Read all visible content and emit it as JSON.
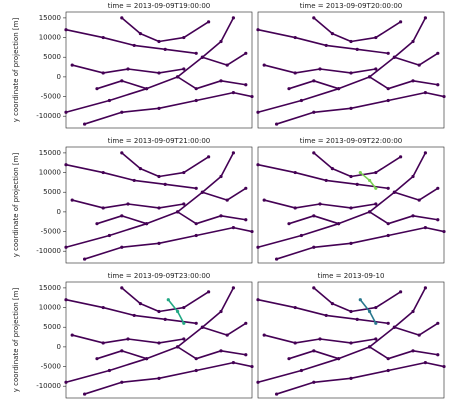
{
  "chart_data": [
    {
      "type": "line",
      "title": "time = 2013-09-09T19:00:00",
      "ylabel": "y coordinate of projection [m]",
      "xlim": [
        -15000,
        15000
      ],
      "ylim": [
        -13000,
        16500
      ],
      "yticks": [
        15000,
        10000,
        5000,
        0,
        -5000,
        -10000
      ],
      "series": [
        {
          "color": "#440154",
          "x": [
            -15000,
            -8000,
            -2000,
            3000,
            7000,
            10000,
            12000
          ],
          "y": [
            -9000,
            -6000,
            -3000,
            0,
            5000,
            9000,
            15000
          ]
        },
        {
          "color": "#440154",
          "x": [
            -15000,
            -9000,
            -4000,
            1000,
            6000
          ],
          "y": [
            12000,
            10000,
            8000,
            7000,
            6000
          ]
        },
        {
          "color": "#440154",
          "x": [
            -14000,
            -9000,
            -5000,
            0,
            4000
          ],
          "y": [
            3000,
            1000,
            2000,
            1000,
            2000
          ]
        },
        {
          "color": "#440154",
          "x": [
            -12000,
            -6000,
            0,
            6000,
            12000,
            15000
          ],
          "y": [
            -12000,
            -9000,
            -8000,
            -6000,
            -4000,
            -5000
          ]
        },
        {
          "color": "#440154",
          "x": [
            -6000,
            -3000,
            0,
            4000,
            8000
          ],
          "y": [
            15000,
            11000,
            9000,
            10000,
            14000
          ]
        },
        {
          "color": "#440154",
          "x": [
            7000,
            11000,
            14000
          ],
          "y": [
            5000,
            3000,
            6000
          ]
        },
        {
          "color": "#440154",
          "x": [
            3000,
            6000,
            10000,
            14000
          ],
          "y": [
            0,
            -3000,
            -1000,
            -2000
          ]
        },
        {
          "color": "#440154",
          "x": [
            -10000,
            -6000,
            -2000
          ],
          "y": [
            -3000,
            -1000,
            -3000
          ]
        }
      ]
    },
    {
      "type": "line",
      "title": "time = 2013-09-09T20:00:00",
      "xlim": [
        -15000,
        15000
      ],
      "ylim": [
        -13000,
        16500
      ],
      "series": [
        {
          "color": "#440154",
          "x": [
            -15000,
            -8000,
            -2000,
            3000,
            7000,
            10000,
            12000
          ],
          "y": [
            -9000,
            -6000,
            -3000,
            0,
            5000,
            9000,
            15000
          ]
        },
        {
          "color": "#440154",
          "x": [
            -15000,
            -9000,
            -4000,
            1000,
            6000
          ],
          "y": [
            12000,
            10000,
            8000,
            7000,
            6000
          ]
        },
        {
          "color": "#440154",
          "x": [
            -14000,
            -9000,
            -5000,
            0,
            4000
          ],
          "y": [
            3000,
            1000,
            2000,
            1000,
            2000
          ]
        },
        {
          "color": "#440154",
          "x": [
            -12000,
            -6000,
            0,
            6000,
            12000,
            15000
          ],
          "y": [
            -12000,
            -9000,
            -8000,
            -6000,
            -4000,
            -5000
          ]
        },
        {
          "color": "#440154",
          "x": [
            -6000,
            -3000,
            0,
            4000,
            8000
          ],
          "y": [
            15000,
            11000,
            9000,
            10000,
            14000
          ]
        },
        {
          "color": "#440154",
          "x": [
            7000,
            11000,
            14000
          ],
          "y": [
            5000,
            3000,
            6000
          ]
        },
        {
          "color": "#440154",
          "x": [
            3000,
            6000,
            10000,
            14000
          ],
          "y": [
            0,
            -3000,
            -1000,
            -2000
          ]
        },
        {
          "color": "#440154",
          "x": [
            -10000,
            -6000,
            -2000
          ],
          "y": [
            -3000,
            -1000,
            -3000
          ]
        }
      ]
    },
    {
      "type": "line",
      "title": "time = 2013-09-09T21:00:00",
      "ylabel": "y coordinate of projection [m]",
      "xlim": [
        -15000,
        15000
      ],
      "ylim": [
        -13000,
        16500
      ],
      "yticks": [
        15000,
        10000,
        5000,
        0,
        -5000,
        -10000
      ],
      "series": [
        {
          "color": "#440154",
          "x": [
            -15000,
            -8000,
            -2000,
            3000,
            7000,
            10000,
            12000
          ],
          "y": [
            -9000,
            -6000,
            -3000,
            0,
            5000,
            9000,
            15000
          ]
        },
        {
          "color": "#440154",
          "x": [
            -15000,
            -9000,
            -4000,
            1000,
            6000
          ],
          "y": [
            12000,
            10000,
            8000,
            7000,
            6000
          ]
        },
        {
          "color": "#440154",
          "x": [
            -14000,
            -9000,
            -5000,
            0,
            4000
          ],
          "y": [
            3000,
            1000,
            2000,
            1000,
            2000
          ]
        },
        {
          "color": "#440154",
          "x": [
            -12000,
            -6000,
            0,
            6000,
            12000,
            15000
          ],
          "y": [
            -12000,
            -9000,
            -8000,
            -6000,
            -4000,
            -5000
          ]
        },
        {
          "color": "#440154",
          "x": [
            -6000,
            -3000,
            0,
            4000,
            8000
          ],
          "y": [
            15000,
            11000,
            9000,
            10000,
            14000
          ]
        },
        {
          "color": "#440154",
          "x": [
            7000,
            11000,
            14000
          ],
          "y": [
            5000,
            3000,
            6000
          ]
        },
        {
          "color": "#440154",
          "x": [
            3000,
            6000,
            10000,
            14000
          ],
          "y": [
            0,
            -3000,
            -1000,
            -2000
          ]
        },
        {
          "color": "#440154",
          "x": [
            -10000,
            -6000,
            -2000
          ],
          "y": [
            -3000,
            -1000,
            -3000
          ]
        }
      ]
    },
    {
      "type": "line",
      "title": "time = 2013-09-09T22:00:00",
      "xlim": [
        -15000,
        15000
      ],
      "ylim": [
        -13000,
        16500
      ],
      "series": [
        {
          "color": "#440154",
          "x": [
            -15000,
            -8000,
            -2000,
            3000,
            7000,
            10000,
            12000
          ],
          "y": [
            -9000,
            -6000,
            -3000,
            0,
            5000,
            9000,
            15000
          ]
        },
        {
          "color": "#440154",
          "x": [
            -15000,
            -9000,
            -4000,
            1000,
            6000
          ],
          "y": [
            12000,
            10000,
            8000,
            7000,
            6000
          ]
        },
        {
          "color": "#440154",
          "x": [
            -14000,
            -9000,
            -5000,
            0,
            4000
          ],
          "y": [
            3000,
            1000,
            2000,
            1000,
            2000
          ]
        },
        {
          "color": "#440154",
          "x": [
            -12000,
            -6000,
            0,
            6000,
            12000,
            15000
          ],
          "y": [
            -12000,
            -9000,
            -8000,
            -6000,
            -4000,
            -5000
          ]
        },
        {
          "color": "#440154",
          "x": [
            -6000,
            -3000,
            0,
            4000,
            8000
          ],
          "y": [
            15000,
            11000,
            9000,
            10000,
            14000
          ]
        },
        {
          "color": "#440154",
          "x": [
            7000,
            11000,
            14000
          ],
          "y": [
            5000,
            3000,
            6000
          ]
        },
        {
          "color": "#440154",
          "x": [
            3000,
            6000,
            10000,
            14000
          ],
          "y": [
            0,
            -3000,
            -1000,
            -2000
          ]
        },
        {
          "color": "#440154",
          "x": [
            -10000,
            -6000,
            -2000
          ],
          "y": [
            -3000,
            -1000,
            -3000
          ]
        },
        {
          "color": "#7ad151",
          "x": [
            1500,
            3000,
            4000
          ],
          "y": [
            10000,
            8000,
            6000
          ]
        }
      ]
    },
    {
      "type": "line",
      "title": "time = 2013-09-09T23:00:00",
      "ylabel": "y coordinate of projection [m]",
      "xlim": [
        -15000,
        15000
      ],
      "ylim": [
        -13000,
        16500
      ],
      "yticks": [
        15000,
        10000,
        5000,
        0,
        -5000,
        -10000
      ],
      "series": [
        {
          "color": "#440154",
          "x": [
            -15000,
            -8000,
            -2000,
            3000,
            7000,
            10000,
            12000
          ],
          "y": [
            -9000,
            -6000,
            -3000,
            0,
            5000,
            9000,
            15000
          ]
        },
        {
          "color": "#440154",
          "x": [
            -15000,
            -9000,
            -4000,
            1000,
            6000
          ],
          "y": [
            12000,
            10000,
            8000,
            7000,
            6000
          ]
        },
        {
          "color": "#440154",
          "x": [
            -14000,
            -9000,
            -5000,
            0,
            4000
          ],
          "y": [
            3000,
            1000,
            2000,
            1000,
            2000
          ]
        },
        {
          "color": "#440154",
          "x": [
            -12000,
            -6000,
            0,
            6000,
            12000,
            15000
          ],
          "y": [
            -12000,
            -9000,
            -8000,
            -6000,
            -4000,
            -5000
          ]
        },
        {
          "color": "#440154",
          "x": [
            -6000,
            -3000,
            0,
            4000,
            8000
          ],
          "y": [
            15000,
            11000,
            9000,
            10000,
            14000
          ]
        },
        {
          "color": "#440154",
          "x": [
            7000,
            11000,
            14000
          ],
          "y": [
            5000,
            3000,
            6000
          ]
        },
        {
          "color": "#440154",
          "x": [
            3000,
            6000,
            10000,
            14000
          ],
          "y": [
            0,
            -3000,
            -1000,
            -2000
          ]
        },
        {
          "color": "#440154",
          "x": [
            -10000,
            -6000,
            -2000
          ],
          "y": [
            -3000,
            -1000,
            -3000
          ]
        },
        {
          "color": "#22a884",
          "x": [
            1500,
            3000,
            4000
          ],
          "y": [
            12000,
            9000,
            6000
          ]
        }
      ]
    },
    {
      "type": "line",
      "title": "time = 2013-09-10",
      "xlim": [
        -15000,
        15000
      ],
      "ylim": [
        -13000,
        16500
      ],
      "series": [
        {
          "color": "#440154",
          "x": [
            -15000,
            -8000,
            -2000,
            3000,
            7000,
            10000,
            12000
          ],
          "y": [
            -9000,
            -6000,
            -3000,
            0,
            5000,
            9000,
            15000
          ]
        },
        {
          "color": "#440154",
          "x": [
            -15000,
            -9000,
            -4000,
            1000,
            6000
          ],
          "y": [
            12000,
            10000,
            8000,
            7000,
            6000
          ]
        },
        {
          "color": "#440154",
          "x": [
            -14000,
            -9000,
            -5000,
            0,
            4000
          ],
          "y": [
            3000,
            1000,
            2000,
            1000,
            2000
          ]
        },
        {
          "color": "#440154",
          "x": [
            -12000,
            -6000,
            0,
            6000,
            12000,
            15000
          ],
          "y": [
            -12000,
            -9000,
            -8000,
            -6000,
            -4000,
            -5000
          ]
        },
        {
          "color": "#440154",
          "x": [
            -6000,
            -3000,
            0,
            4000,
            8000
          ],
          "y": [
            15000,
            11000,
            9000,
            10000,
            14000
          ]
        },
        {
          "color": "#440154",
          "x": [
            7000,
            11000,
            14000
          ],
          "y": [
            5000,
            3000,
            6000
          ]
        },
        {
          "color": "#440154",
          "x": [
            3000,
            6000,
            10000,
            14000
          ],
          "y": [
            0,
            -3000,
            -1000,
            -2000
          ]
        },
        {
          "color": "#440154",
          "x": [
            -10000,
            -6000,
            -2000
          ],
          "y": [
            -3000,
            -1000,
            -3000
          ]
        },
        {
          "color": "#2a788e",
          "x": [
            1500,
            3000,
            4000
          ],
          "y": [
            12000,
            9000,
            6000
          ]
        }
      ]
    }
  ]
}
